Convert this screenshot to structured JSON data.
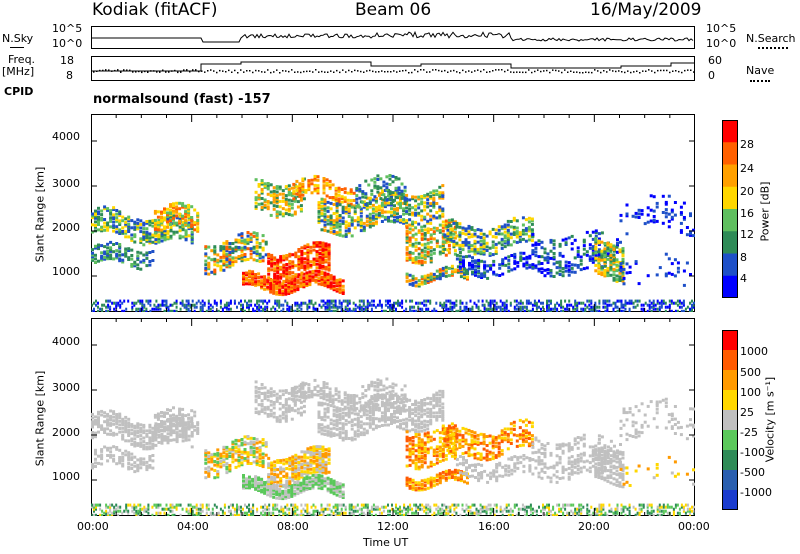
{
  "header": {
    "station": "Kodiak (fitACF)",
    "beam": "Beam 06",
    "date": "16/May/2009"
  },
  "top_panels": {
    "nsky_label": "N.Sky",
    "nsky_ticks": [
      "10^5",
      "10^0"
    ],
    "nsearch_label": "N.Search",
    "nsearch_ticks": [
      "10^5",
      "10^0"
    ],
    "freq_label": "Freq.",
    "freq_unit": "[MHz]",
    "freq_ticks": [
      "18",
      "8"
    ],
    "nave_label": "Nave",
    "nave_ticks": [
      "60",
      "0"
    ],
    "cpid_label": "CPID",
    "cpid_value": "normalsound (fast) -157"
  },
  "colors": {
    "power": [
      "#0000ff",
      "#1e50c8",
      "#2e8b57",
      "#5fbf5f",
      "#ffd700",
      "#ffa000",
      "#ff6000",
      "#ff0000"
    ],
    "velocity": [
      "#1a3ccf",
      "#2a5fb0",
      "#2e8b57",
      "#5ac85a",
      "#c0c0c0",
      "#ffd700",
      "#ff9a00",
      "#ff5a00",
      "#ff0000"
    ]
  },
  "chart_data": [
    {
      "type": "heatmap",
      "name": "power",
      "ylabel": "Slant Range [km]",
      "yticks": [
        "4000",
        "3000",
        "2000",
        "1000"
      ],
      "ylim": [
        200,
        4600
      ],
      "xlim": [
        "00:00",
        "24:00"
      ],
      "colorbar_label": "Power [dB]",
      "colorbar_ticks": [
        "28",
        "24",
        "20",
        "16",
        "12",
        "8",
        "4"
      ]
    },
    {
      "type": "heatmap",
      "name": "velocity",
      "ylabel": "Slant Range [km]",
      "yticks": [
        "4000",
        "3000",
        "2000",
        "1000"
      ],
      "ylim": [
        200,
        4600
      ],
      "xlim": [
        "00:00",
        "24:00"
      ],
      "colorbar_label": "Velocity [m s⁻¹]",
      "colorbar_ticks": [
        "1000",
        "500",
        "100",
        "25",
        "-25",
        "-100",
        "-500",
        "-1000"
      ]
    }
  ],
  "xaxis": {
    "label": "Time UT",
    "ticks": [
      "00:00",
      "04:00",
      "08:00",
      "12:00",
      "16:00",
      "20:00",
      "00:00"
    ]
  }
}
